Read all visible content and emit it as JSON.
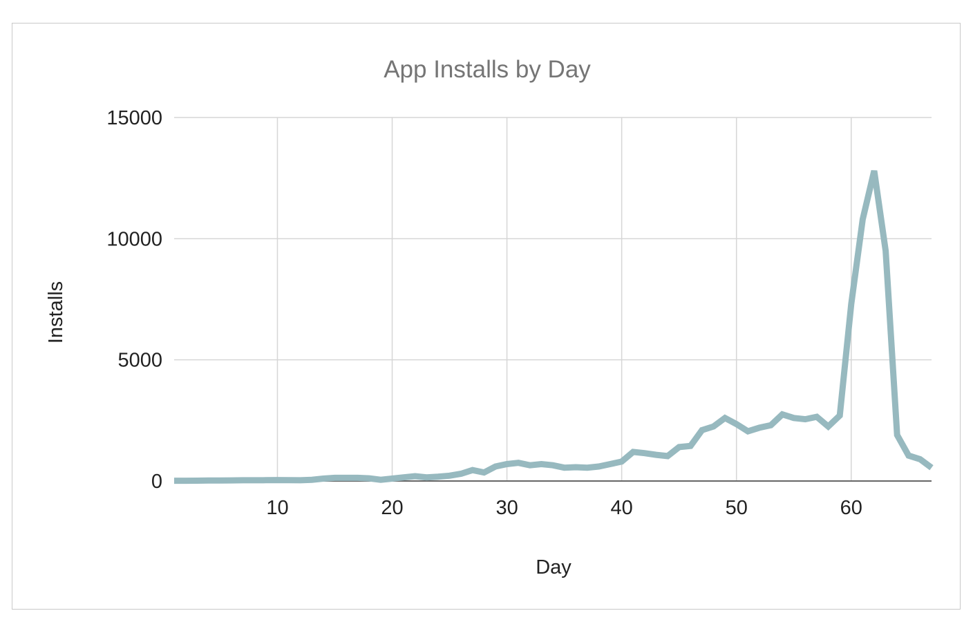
{
  "chart_data": {
    "type": "line",
    "title": "App Installs by Day",
    "xlabel": "Day",
    "ylabel": "Installs",
    "xlim": [
      1,
      67
    ],
    "ylim": [
      0,
      15000
    ],
    "xticks": [
      10,
      20,
      30,
      40,
      50,
      60
    ],
    "yticks": [
      0,
      5000,
      10000,
      15000
    ],
    "grid": true,
    "legend": "none",
    "line_color": "#97b9bf",
    "x": [
      1,
      2,
      3,
      4,
      5,
      6,
      7,
      8,
      9,
      10,
      11,
      12,
      13,
      14,
      15,
      16,
      17,
      18,
      19,
      20,
      21,
      22,
      23,
      24,
      25,
      26,
      27,
      28,
      29,
      30,
      31,
      32,
      33,
      34,
      35,
      36,
      37,
      38,
      39,
      40,
      41,
      42,
      43,
      44,
      45,
      46,
      47,
      48,
      49,
      50,
      51,
      52,
      53,
      54,
      55,
      56,
      57,
      58,
      59,
      60,
      61,
      62,
      63,
      64,
      65,
      66,
      67
    ],
    "values": [
      10,
      10,
      15,
      20,
      20,
      25,
      30,
      30,
      35,
      40,
      35,
      30,
      50,
      100,
      130,
      130,
      130,
      110,
      50,
      100,
      150,
      200,
      150,
      180,
      220,
      300,
      450,
      350,
      600,
      700,
      750,
      650,
      700,
      650,
      550,
      570,
      550,
      600,
      700,
      800,
      1200,
      1150,
      1080,
      1030,
      1400,
      1450,
      2100,
      2250,
      2600,
      2350,
      2050,
      2200,
      2300,
      2750,
      2600,
      2550,
      2650,
      2250,
      2700,
      7300,
      10800,
      12800,
      9500,
      1900,
      1050,
      900,
      550
    ]
  }
}
